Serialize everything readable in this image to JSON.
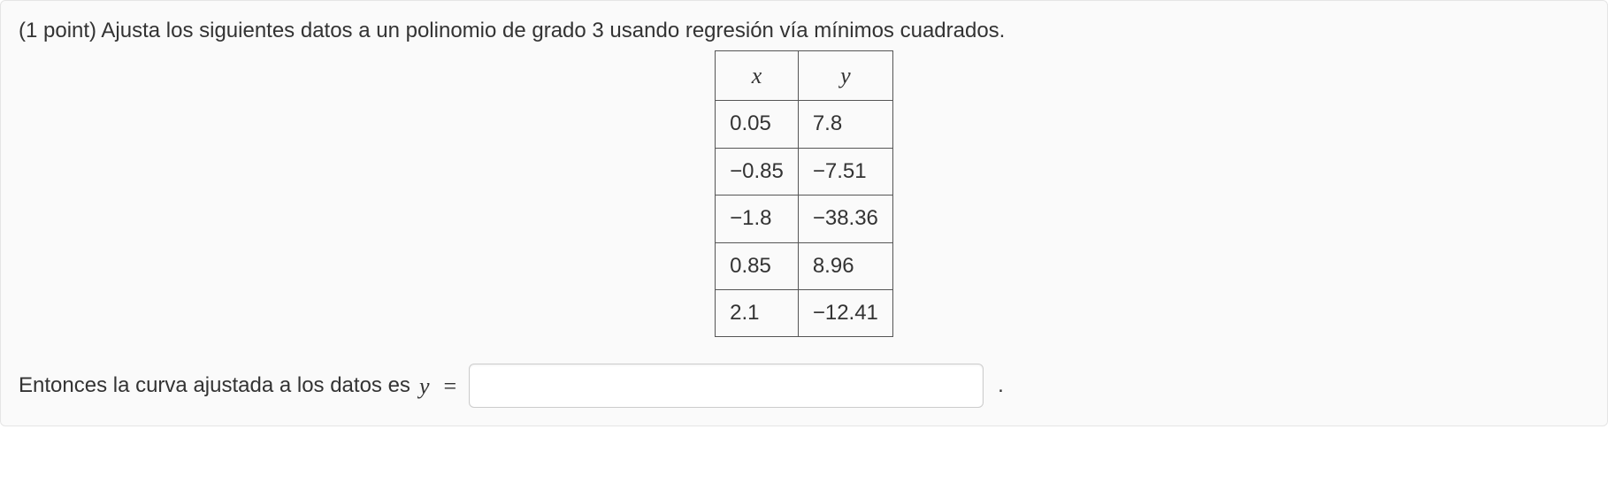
{
  "problem": {
    "points_prefix": "(1 point) ",
    "statement": "Ajusta los siguientes datos a un polinomio de grado 3 usando regresión vía mínimos cuadrados."
  },
  "table": {
    "headers": {
      "x": "x",
      "y": "y"
    },
    "rows": [
      {
        "x": "0.05",
        "y": "7.8"
      },
      {
        "x": "−0.85",
        "y": "−7.51"
      },
      {
        "x": "−1.8",
        "y": "−38.36"
      },
      {
        "x": "0.85",
        "y": "8.96"
      },
      {
        "x": "2.1",
        "y": "−12.41"
      }
    ]
  },
  "answer": {
    "prompt": "Entonces la curva ajustada a los datos es ",
    "variable": "y",
    "equals": "=",
    "input_value": "",
    "placeholder": "",
    "trailing": "."
  },
  "style": {
    "border_color": "#e5e5e5",
    "box_bg": "#fafafa",
    "text_color": "#333333",
    "cell_border": "#555555",
    "input_border": "#cccccc"
  }
}
